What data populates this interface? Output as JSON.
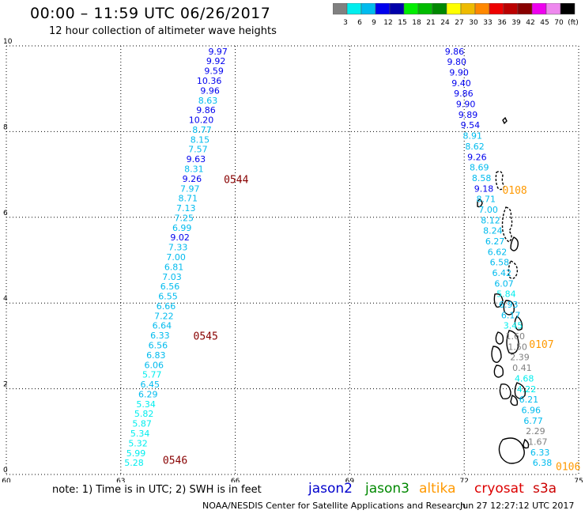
{
  "title": "00:00 – 11:59 UTC 06/26/2017",
  "subtitle": "12 hour collection of altimeter wave heights",
  "colorbar": {
    "colors": [
      "#808080",
      "#00eeee",
      "#00bbee",
      "#0000ee",
      "#0000aa",
      "#00ee00",
      "#00bb00",
      "#008800",
      "#ffff00",
      "#eebb00",
      "#ff8800",
      "#ee0000",
      "#bb0000",
      "#880000",
      "#ee00ee",
      "#ee88ee",
      "#000000"
    ],
    "labels": [
      "3",
      "6",
      "9",
      "12",
      "15",
      "18",
      "21",
      "24",
      "27",
      "30",
      "33",
      "36",
      "39",
      "42",
      "45",
      "70",
      "(ft)"
    ]
  },
  "axes": {
    "x_ticks": [
      60,
      63,
      66,
      69,
      72,
      75
    ],
    "y_ticks": [
      0,
      2,
      4,
      6,
      8,
      10
    ],
    "x_tick_labels": [
      "60",
      "63",
      "66",
      "69",
      "72",
      "75"
    ],
    "y_tick_labels": [
      "0",
      "2",
      "4",
      "6",
      "8",
      "10"
    ],
    "xlim": [
      60,
      75
    ],
    "ylim": [
      0,
      10
    ]
  },
  "track_left": {
    "lon_top": 65.8,
    "lat_top": 9.8,
    "lon_bottom": 63.6,
    "lat_bottom": 0.2,
    "values": [
      "9.97",
      "9.92",
      "9.59",
      "10.36",
      "9.96",
      "8.63",
      "9.86",
      "10.20",
      "8.77",
      "8.15",
      "7.57",
      "9.63",
      "8.31",
      "9.26",
      "7.97",
      "8.71",
      "7.13",
      "7.25",
      "6.99",
      "9.02",
      "7.33",
      "7.00",
      "6.81",
      "7.03",
      "6.56",
      "6.55",
      "6.66",
      "7.22",
      "6.64",
      "6.33",
      "6.56",
      "6.83",
      "6.06",
      "5.77",
      "6.45",
      "6.29",
      "5.34",
      "5.82",
      "5.87",
      "5.34",
      "5.32",
      "5.99",
      "5.28"
    ]
  },
  "track_right": {
    "lon_top": 72.0,
    "lat_top": 9.8,
    "lon_bottom": 74.3,
    "lat_bottom": 0.2,
    "values": [
      "9.86",
      "9.80",
      "9.90",
      "9.40",
      "9.86",
      "9.90",
      "9.89",
      "9.54",
      "8.91",
      "8.62",
      "9.26",
      "8.69",
      "8.58",
      "9.18",
      "8.71",
      "7.00",
      "8.12",
      "8.24",
      "6.27",
      "6.62",
      "6.58",
      "6.42",
      "6.07",
      "5.84",
      "6.93",
      "6.17",
      "3.45",
      "1.60",
      "1.50",
      "2.39",
      "0.41",
      "4.68",
      "4.22",
      "6.21",
      "6.96",
      "6.77",
      "2.29",
      "1.67",
      "6.33",
      "6.38"
    ]
  },
  "time_labels": [
    {
      "text": "0544",
      "lon": 65.7,
      "lat": 6.8,
      "color": "#880000"
    },
    {
      "text": "0545",
      "lon": 64.9,
      "lat": 3.15,
      "color": "#880000"
    },
    {
      "text": "0546",
      "lon": 64.1,
      "lat": 0.25,
      "color": "#880000"
    },
    {
      "text": "0108",
      "lon": 73.0,
      "lat": 6.55,
      "color": "#ff9900"
    },
    {
      "text": "0107",
      "lon": 73.7,
      "lat": 2.95,
      "color": "#ff9900"
    },
    {
      "text": "0106",
      "lon": 74.4,
      "lat": 0.1,
      "color": "#ff9900"
    }
  ],
  "note": "note: 1) Time is in UTC; 2) SWH is in feet",
  "satellites": {
    "jason2": "jason2",
    "jason3": "jason3",
    "altika": "altika",
    "cryosat": "cryosat",
    "s3a": "s3a"
  },
  "credit": "NOAA/NESDIS Center for Satellite Applications and Research",
  "timestamp": "Jun 27 12:27:12 UTC 2017"
}
